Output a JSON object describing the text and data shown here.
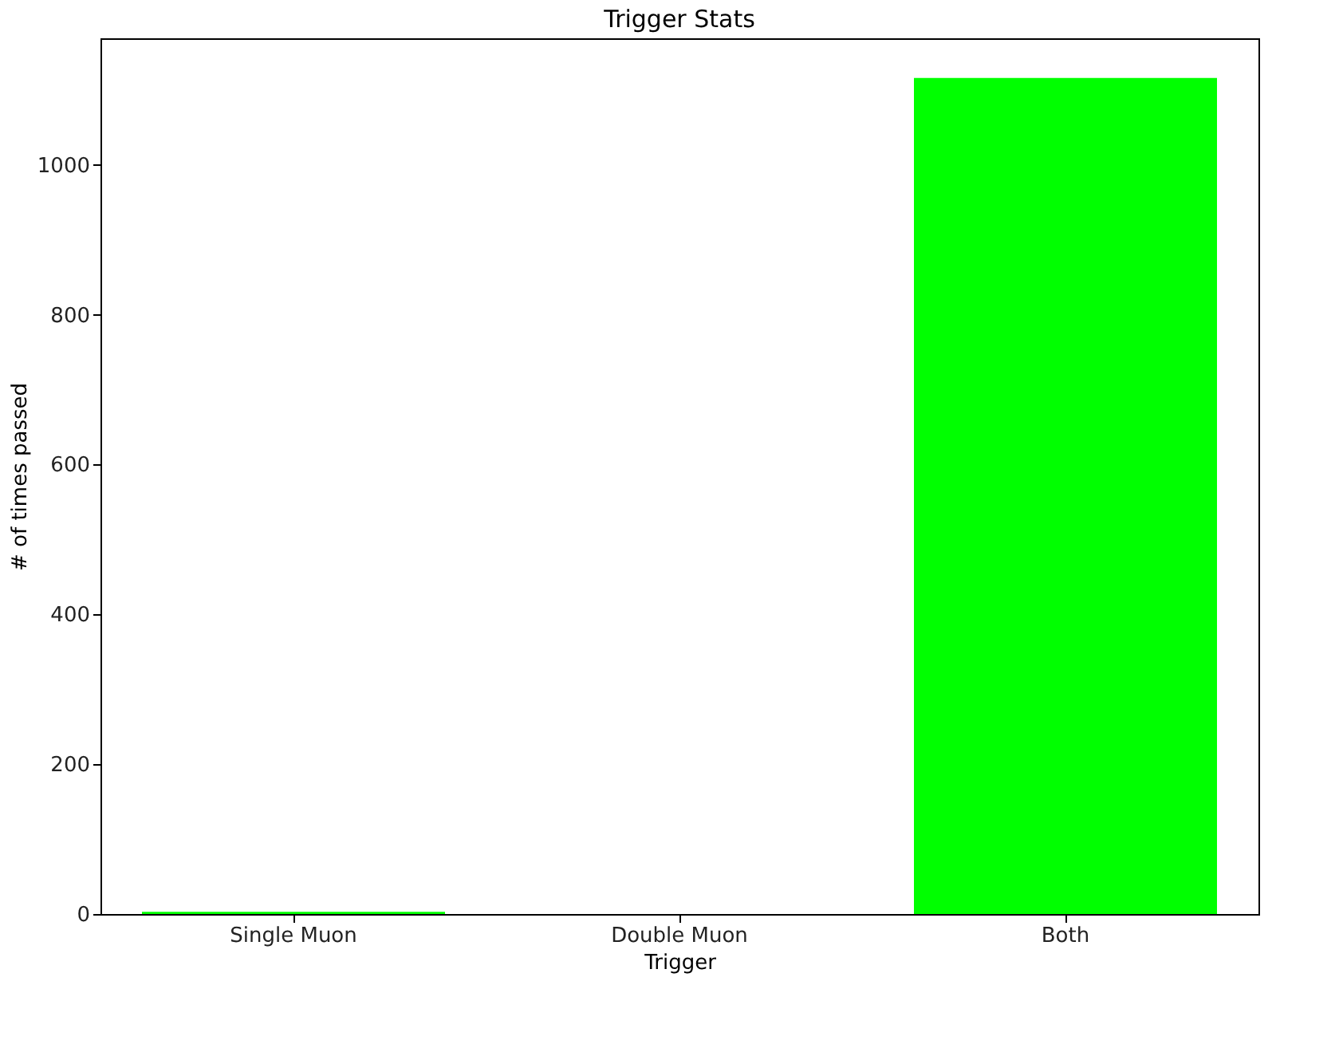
{
  "chart_data": {
    "type": "bar",
    "title": "Trigger Stats",
    "xlabel": "Trigger",
    "ylabel": "# of times passed",
    "categories": [
      "Single Muon",
      "Double Muon",
      "Both"
    ],
    "values": [
      3,
      0,
      1116
    ],
    "color": "#00ff00",
    "ylim": [
      0,
      1169
    ],
    "yticks": [
      0,
      200,
      400,
      600,
      800,
      1000
    ],
    "grid": false
  }
}
